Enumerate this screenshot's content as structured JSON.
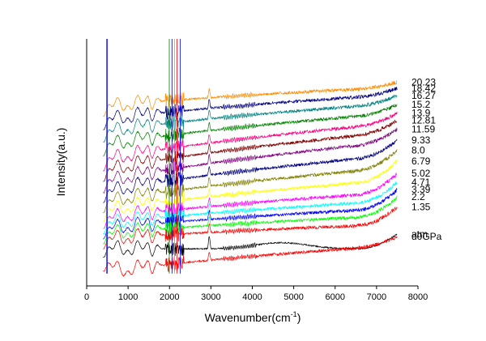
{
  "chart_data": {
    "type": "line",
    "title": "",
    "xlabel": "Wavenumber(cm",
    "xlabel_sup": "-1",
    "xlabel_end": ")",
    "ylabel": "Intensity(a.u.)",
    "xlim": [
      0,
      8000
    ],
    "xticks": [
      0,
      1000,
      2000,
      3000,
      4000,
      5000,
      6000,
      7000,
      8000
    ],
    "xtick_labels": [
      "0",
      "1000",
      "2000",
      "3000",
      "4000",
      "5000",
      "6000",
      "7000",
      "8000"
    ],
    "y_ticks_visible": false,
    "grid": false,
    "legend": "inline-right",
    "series": [
      {
        "name": "20.23",
        "color": "#ff8c00",
        "base": 0.72,
        "rise": 0.085,
        "tail": 0.02
      },
      {
        "name": "18.42",
        "color": "#000080",
        "base": 0.665,
        "rise": 0.11,
        "tail": 0.025
      },
      {
        "name": "16.27",
        "color": "#008080",
        "base": 0.615,
        "rise": 0.125,
        "tail": 0.03
      },
      {
        "name": "15.2",
        "color": "#008000",
        "base": 0.56,
        "rise": 0.14,
        "tail": 0.035
      },
      {
        "name": "13.9",
        "color": "#ff0080",
        "base": 0.5,
        "rise": 0.16,
        "tail": 0.04
      },
      {
        "name": "12.81",
        "color": "#800000",
        "base": 0.455,
        "rise": 0.17,
        "tail": 0.045
      },
      {
        "name": "11.59",
        "color": "#800080",
        "base": 0.41,
        "rise": 0.175,
        "tail": 0.05
      },
      {
        "name": "9.33",
        "color": "#000080",
        "base": 0.37,
        "rise": 0.16,
        "tail": 0.06
      },
      {
        "name": "8.0",
        "color": "#808000",
        "base": 0.33,
        "rise": 0.15,
        "tail": 0.07
      },
      {
        "name": "6.79",
        "color": "#ffff00",
        "base": 0.295,
        "rise": 0.135,
        "tail": 0.075
      },
      {
        "name": "5.02",
        "color": "#ff00ff",
        "base": 0.265,
        "rise": 0.115,
        "tail": 0.075
      },
      {
        "name": "4.71",
        "color": "#00ffff",
        "base": 0.245,
        "rise": 0.1,
        "tail": 0.075
      },
      {
        "name": "3.39",
        "color": "#0000ff",
        "base": 0.225,
        "rise": 0.09,
        "tail": 0.075
      },
      {
        "name": "2.2",
        "color": "#00ff00",
        "base": 0.205,
        "rise": 0.08,
        "tail": 0.075
      },
      {
        "name": "1.35",
        "color": "#ff0000",
        "base": 0.185,
        "rise": 0.065,
        "tail": 0.07
      },
      {
        "name": "atm",
        "color": "#000000",
        "base": 0.15,
        "rise": 0.0,
        "tail": 0.06
      },
      {
        "name": "d0GPa",
        "color": "#ff0000",
        "base": 0.045,
        "rise": 0.12,
        "tail": 0.035
      }
    ]
  }
}
